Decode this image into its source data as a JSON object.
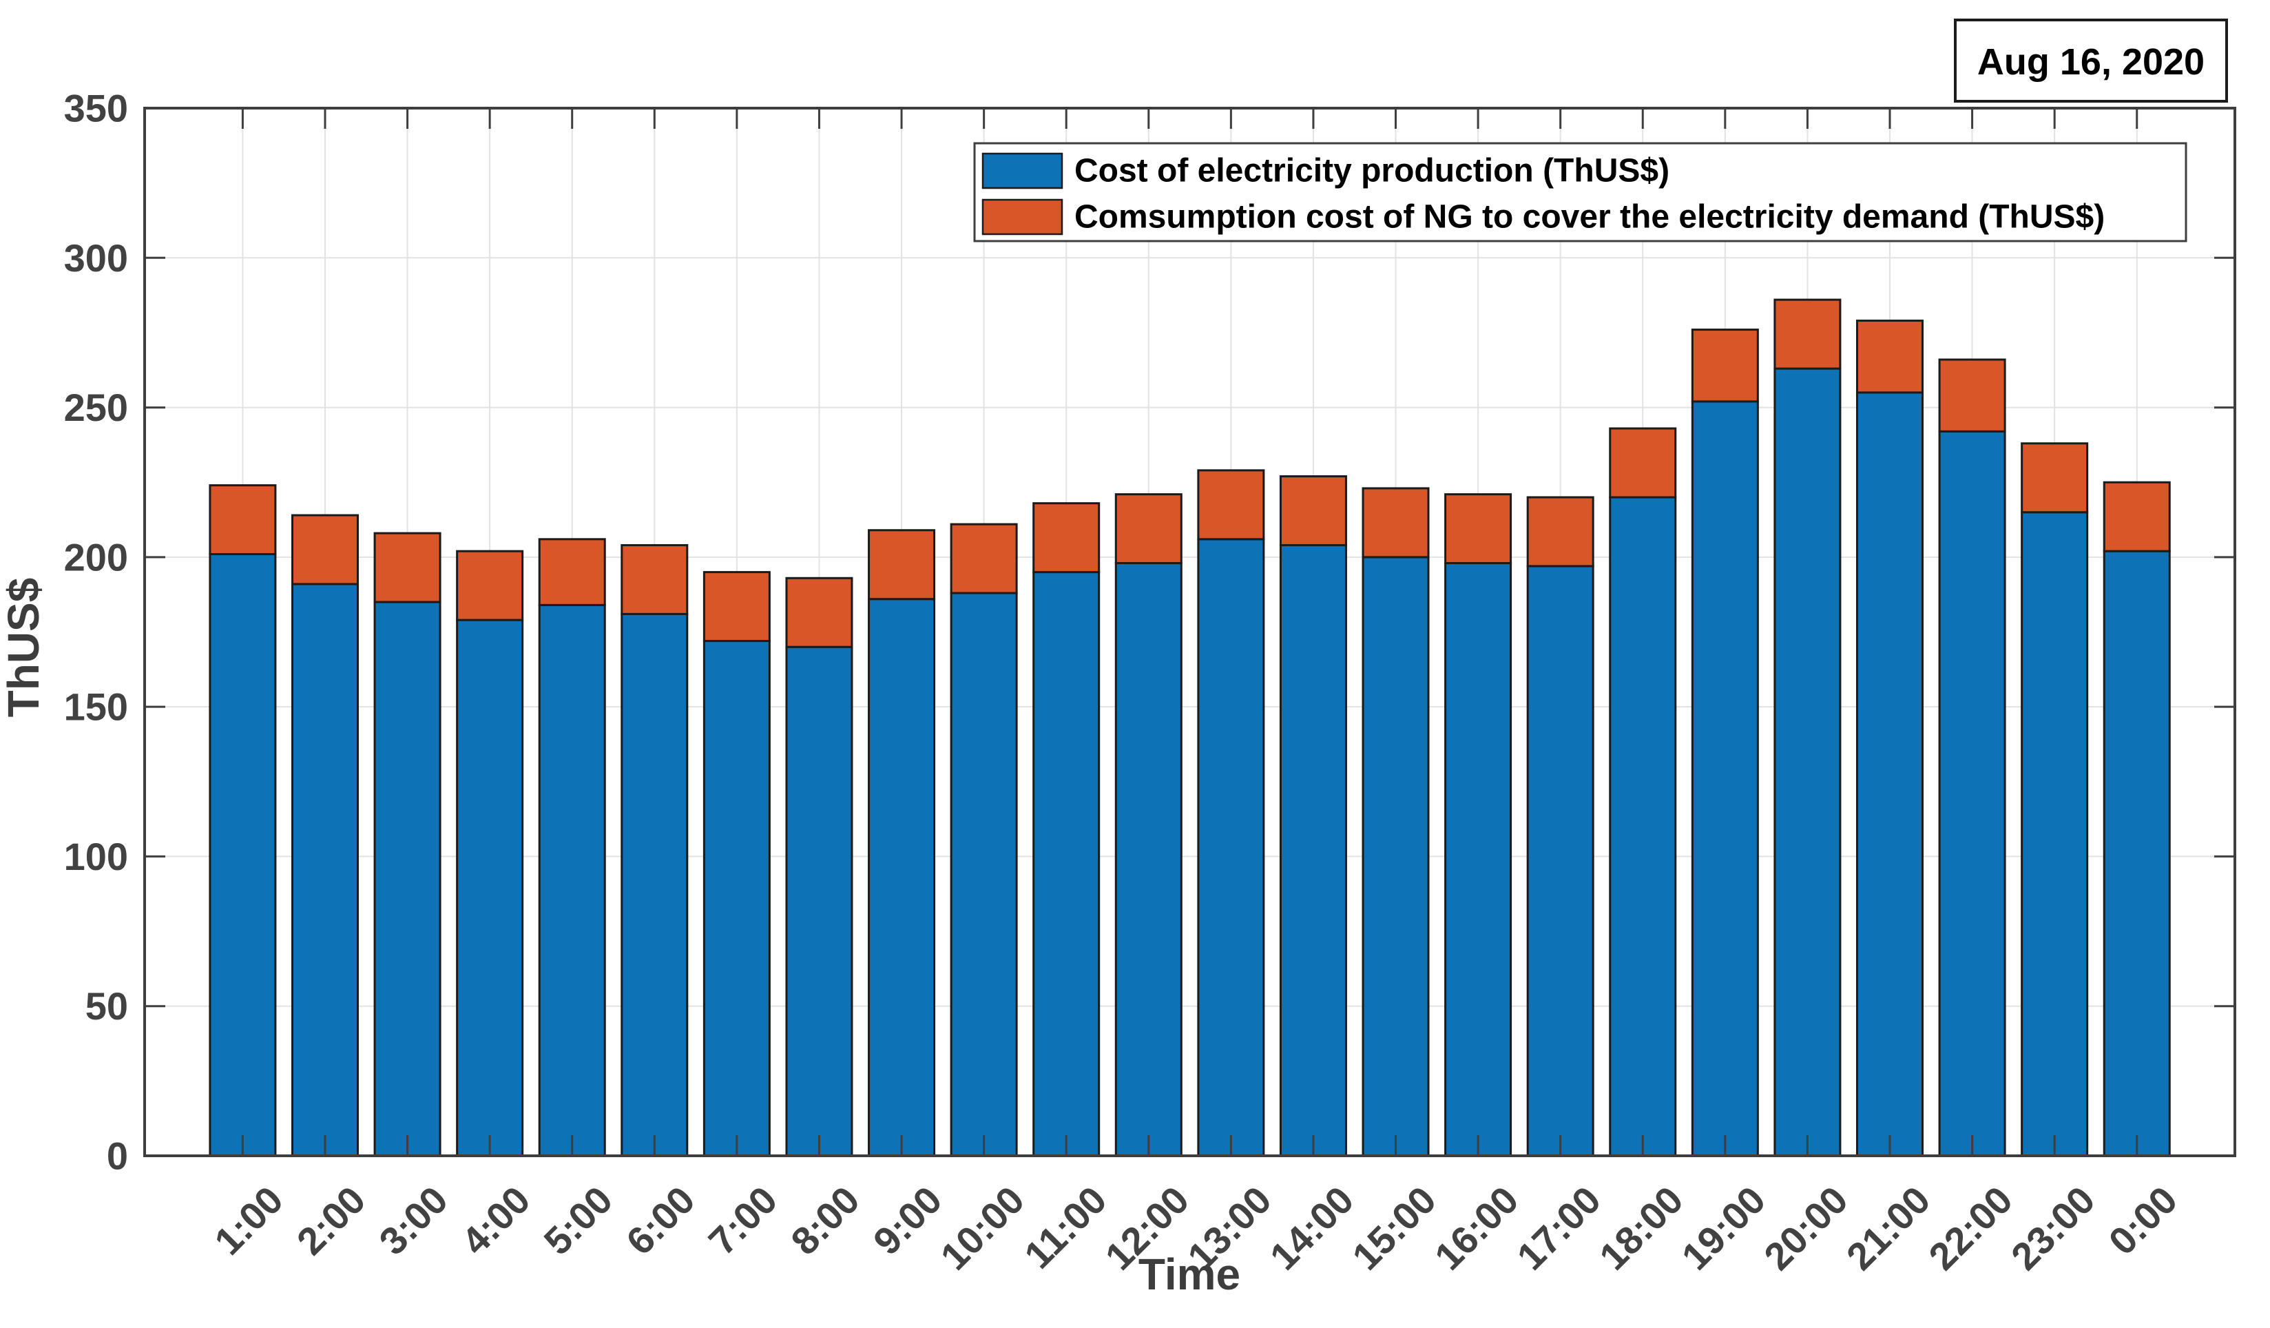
{
  "figure": {
    "date_label": "Aug 16, 2020"
  },
  "chart_data": {
    "type": "bar",
    "stacked": true,
    "title": "Aug 16, 2020",
    "xlabel": "Time",
    "ylabel": "ThUS$",
    "ylim": [
      0,
      350
    ],
    "yticks": [
      0,
      50,
      100,
      150,
      200,
      250,
      300,
      350
    ],
    "grid": true,
    "legend_position": "inside-top",
    "categories": [
      "1:00",
      "2:00",
      "3:00",
      "4:00",
      "5:00",
      "6:00",
      "7:00",
      "8:00",
      "9:00",
      "10:00",
      "11:00",
      "12:00",
      "13:00",
      "14:00",
      "15:00",
      "16:00",
      "17:00",
      "18:00",
      "19:00",
      "20:00",
      "21:00",
      "22:00",
      "23:00",
      "0:00"
    ],
    "series": [
      {
        "name": "Cost of electricity production (ThUS$)",
        "color": "#0d73b6",
        "values": [
          201,
          191,
          185,
          179,
          184,
          181,
          172,
          170,
          186,
          188,
          195,
          198,
          206,
          204,
          200,
          198,
          197,
          220,
          252,
          263,
          255,
          242,
          215,
          202
        ]
      },
      {
        "name": "Comsumption cost of NG to cover the electricity demand (ThUS$)",
        "color": "#d85627",
        "values": [
          23,
          23,
          23,
          23,
          22,
          23,
          23,
          23,
          23,
          23,
          23,
          23,
          23,
          23,
          23,
          23,
          23,
          23,
          24,
          23,
          24,
          24,
          23,
          23
        ]
      }
    ]
  },
  "style": {
    "background": "#ffffff",
    "bar_edge": "#1b1b1b",
    "axis_color": "#3e3e3e",
    "grid_color": "#e2e2e2",
    "tick_label_color": "#424242",
    "legend_border": "#3e3e3e",
    "date_border": "#1b1b1b"
  }
}
